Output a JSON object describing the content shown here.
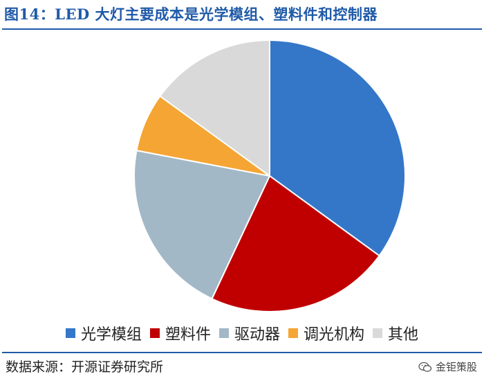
{
  "title": "图14：LED 大灯主要成本是光学模组、塑料件和控制器",
  "source": "数据来源：开源证券研究所",
  "watermark": "金钜策股",
  "chart_data": {
    "type": "pie",
    "title": "图14：LED 大灯主要成本是光学模组、塑料件和控制器",
    "legend_position": "bottom",
    "start": "12 o'clock, clockwise",
    "categories": [
      "光学模组",
      "塑料件",
      "驱动器",
      "调光机构",
      "其他"
    ],
    "values": [
      35,
      22,
      21,
      7,
      15
    ],
    "colors": [
      "#3477c8",
      "#c00000",
      "#a3b8c6",
      "#f5a533",
      "#d9d9d9"
    ]
  }
}
